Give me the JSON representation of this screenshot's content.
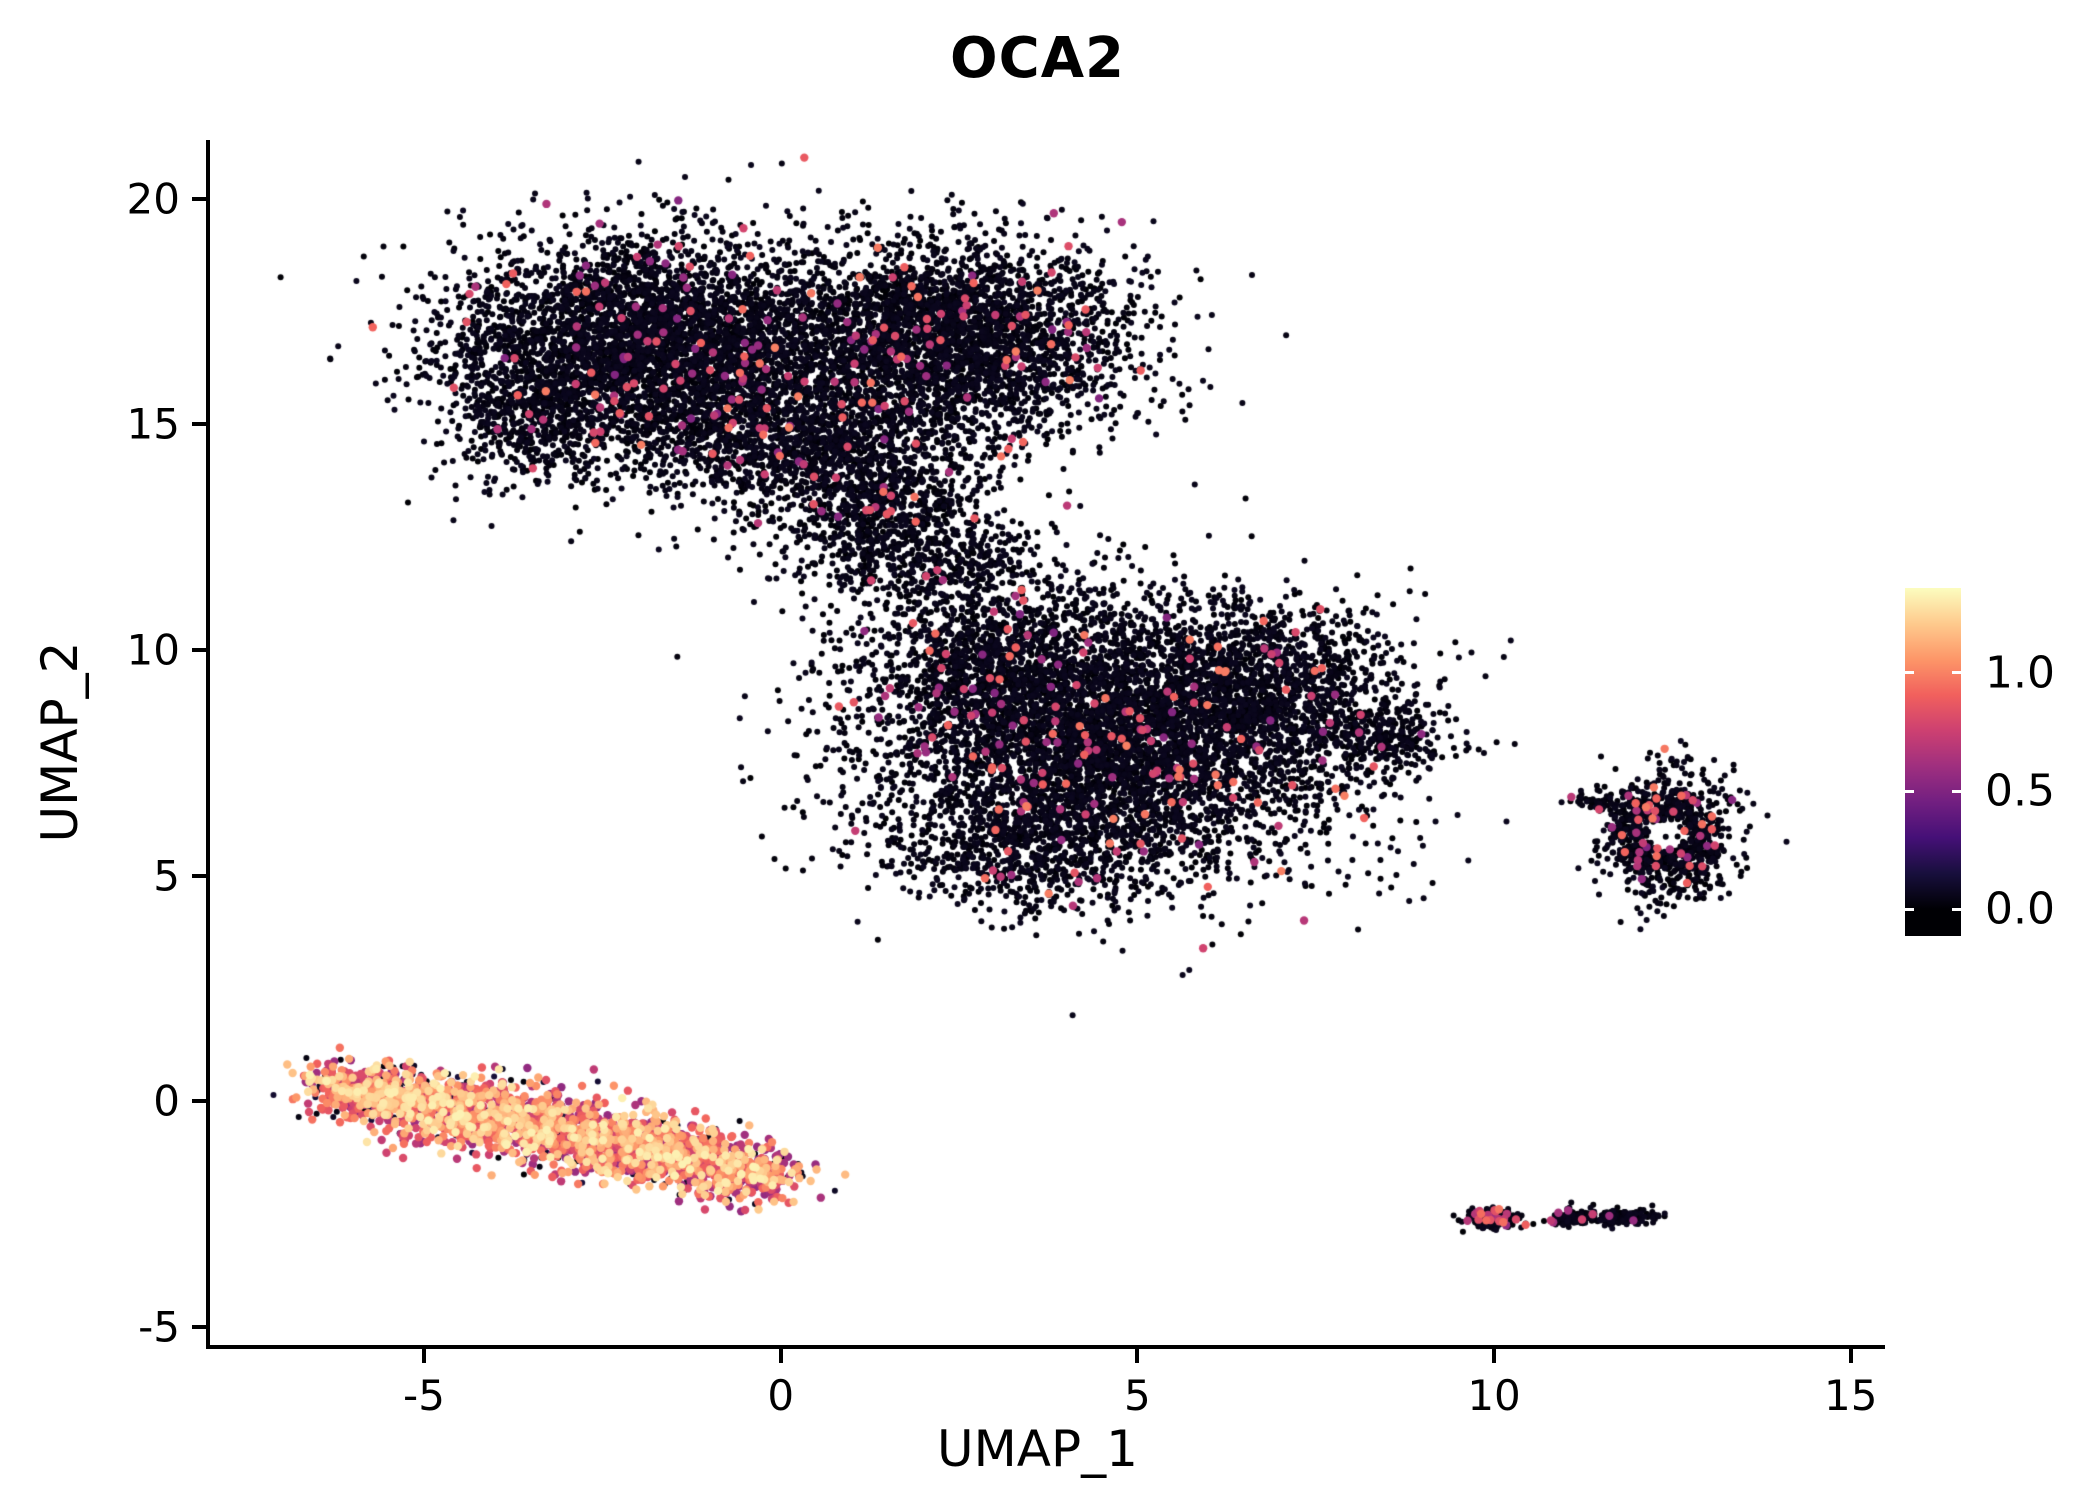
{
  "page": {
    "background": "#ffffff"
  },
  "chart_data": {
    "type": "scatter",
    "title": "OCA2",
    "subtitle": "",
    "xlabel": "UMAP_1",
    "ylabel": "UMAP_2",
    "xlim": [
      -8.0,
      15.2
    ],
    "ylim": [
      -5.4,
      21.3
    ],
    "xticks": [
      -5,
      0,
      5,
      10,
      15
    ],
    "yticks": [
      -5,
      0,
      5,
      10,
      15,
      20
    ],
    "grid": false,
    "legend_position": "right-colorbar",
    "background": "#ffffff",
    "colormap": {
      "name": "magma",
      "stops": [
        "#000004",
        "#180f3d",
        "#451077",
        "#721f81",
        "#9f2f7f",
        "#cd4071",
        "#f1605d",
        "#fd9668",
        "#feca8d",
        "#fcfdbf"
      ]
    },
    "colorbar": {
      "vmin": -0.114,
      "vmax": 1.36,
      "ticks": [
        {
          "value": 1.0,
          "label": "1.0"
        },
        {
          "value": 0.5,
          "label": "0.5"
        },
        {
          "value": 0.0,
          "label": "0.0"
        }
      ]
    },
    "value_max": 1.36,
    "seed": 987123,
    "point_radius": {
      "base": 3.0,
      "expressing": 4.2
    },
    "clusters": [
      {
        "name": "upper-large-cluster",
        "expression": [
          {
            "p": 0.977,
            "range": [
              0.0,
              0.07
            ]
          },
          {
            "p": 0.023,
            "range": [
              0.5,
              1.0
            ]
          }
        ],
        "lobes": [
          {
            "cx": -1.8,
            "cy": 16.8,
            "sdx": 1.35,
            "sdy": 1.15,
            "n": 4200
          },
          {
            "cx": 2.4,
            "cy": 16.9,
            "sdx": 1.25,
            "sdy": 1.05,
            "n": 3200
          },
          {
            "cx": 0.3,
            "cy": 14.6,
            "sdx": 1.2,
            "sdy": 0.8,
            "n": 1400
          },
          {
            "cx": -3.6,
            "cy": 15.3,
            "sdx": 0.6,
            "sdy": 0.8,
            "n": 500
          },
          {
            "cx": 1.3,
            "cy": 13.0,
            "sdx": 0.8,
            "sdy": 0.8,
            "n": 700
          },
          {
            "cx": 2.3,
            "cy": 11.9,
            "sdx": 0.7,
            "sdy": 0.6,
            "n": 350
          }
        ]
      },
      {
        "name": "middle-large-cluster",
        "expression": [
          {
            "p": 0.979,
            "range": [
              0.0,
              0.07
            ]
          },
          {
            "p": 0.021,
            "range": [
              0.5,
              1.0
            ]
          }
        ],
        "lobes": [
          {
            "cx": 4.7,
            "cy": 8.0,
            "sdx": 1.7,
            "sdy": 1.5,
            "n": 5200
          },
          {
            "cx": 3.0,
            "cy": 9.6,
            "sdx": 1.0,
            "sdy": 1.0,
            "n": 1000
          },
          {
            "cx": 6.8,
            "cy": 9.3,
            "sdx": 0.9,
            "sdy": 0.8,
            "n": 900
          },
          {
            "cx": 3.6,
            "cy": 5.6,
            "sdx": 1.0,
            "sdy": 0.7,
            "n": 700
          },
          {
            "cx": 8.4,
            "cy": 8.1,
            "sdx": 0.45,
            "sdy": 0.4,
            "n": 250
          }
        ]
      },
      {
        "name": "right-ring-cluster",
        "expression": [
          {
            "p": 0.95,
            "range": [
              0.0,
              0.07
            ]
          },
          {
            "p": 0.05,
            "range": [
              0.5,
              1.0
            ]
          }
        ],
        "lobes": [
          {
            "cx": 12.45,
            "cy": 5.9,
            "sdx": 0.45,
            "sdy": 0.75,
            "n": 620,
            "hole_r": 0.33
          },
          {
            "cx": 12.4,
            "cy": 5.9,
            "ring": true,
            "r": 0.55,
            "sd": 0.16,
            "yscale": 1.25,
            "n": 300
          },
          {
            "cx": 11.5,
            "cy": 6.65,
            "sdx": 0.25,
            "sdy": 0.18,
            "n": 60
          }
        ]
      },
      {
        "name": "bottom-left-high-expression-cluster",
        "expression": [
          {
            "p": 0.15,
            "range": [
              0.0,
              0.15
            ]
          },
          {
            "p": 0.45,
            "range": [
              0.55,
              0.95
            ]
          },
          {
            "p": 0.4,
            "range": [
              0.95,
              1.33
            ]
          }
        ],
        "lobes": [
          {
            "cx": -5.6,
            "cy": 0.15,
            "sdx": 0.55,
            "sdy": 0.32,
            "rot": -15,
            "n": 520
          },
          {
            "cx": -4.4,
            "cy": -0.25,
            "sdx": 0.7,
            "sdy": 0.38,
            "rot": -15,
            "n": 650
          },
          {
            "cx": -3.0,
            "cy": -0.7,
            "sdx": 0.75,
            "sdy": 0.4,
            "rot": -15,
            "n": 650
          },
          {
            "cx": -1.6,
            "cy": -1.2,
            "sdx": 0.7,
            "sdy": 0.38,
            "rot": -15,
            "n": 550
          },
          {
            "cx": -0.5,
            "cy": -1.6,
            "sdx": 0.45,
            "sdy": 0.28,
            "rot": -15,
            "n": 300
          }
        ]
      },
      {
        "name": "bottom-right-small-cluster-left",
        "expression": [
          {
            "p": 0.9,
            "range": [
              0.0,
              0.07
            ]
          },
          {
            "p": 0.1,
            "range": [
              0.5,
              1.0
            ]
          }
        ],
        "lobes": [
          {
            "cx": 9.95,
            "cy": -2.6,
            "sdx": 0.18,
            "sdy": 0.11,
            "n": 210
          }
        ]
      },
      {
        "name": "bottom-right-small-cluster-right",
        "expression": [
          {
            "p": 0.975,
            "range": [
              0.0,
              0.07
            ]
          },
          {
            "p": 0.025,
            "range": [
              0.5,
              0.9
            ]
          }
        ],
        "lobes": [
          {
            "cx": 11.0,
            "cy": -2.62,
            "sdx": 0.12,
            "sdy": 0.07,
            "n": 60
          },
          {
            "cx": 11.65,
            "cy": -2.55,
            "sdx": 0.32,
            "sdy": 0.09,
            "n": 180
          }
        ]
      }
    ],
    "singletons": [
      [
        6.45,
        3.7,
        0
      ],
      [
        0.3,
        11.25,
        0
      ],
      [
        9.0,
        8.35,
        0
      ],
      [
        10.55,
        -2.72,
        0
      ],
      [
        10.7,
        -2.65,
        0
      ]
    ]
  }
}
